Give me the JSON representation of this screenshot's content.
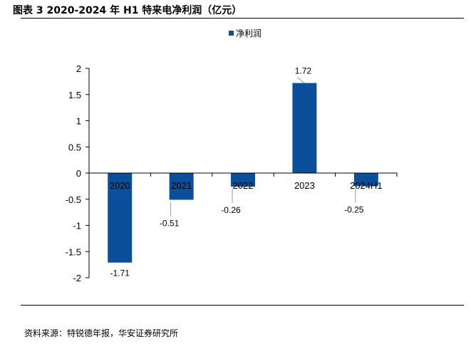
{
  "figure_title": "图表 3 2020-2024 年 H1 特来电净利润（亿元）",
  "source_note": "资料来源：特锐德年报，华安证券研究所",
  "chart_data": {
    "type": "bar",
    "title": "",
    "xlabel": "",
    "ylabel": "",
    "categories": [
      "2020",
      "2021",
      "2022",
      "2023",
      "2024H1"
    ],
    "series": [
      {
        "name": "净利润",
        "values": [
          -1.71,
          -0.51,
          -0.26,
          1.72,
          -0.25
        ],
        "color": "#0b4f9b"
      }
    ],
    "data_labels": [
      "-1.71",
      "-0.51",
      "-0.26",
      "1.72",
      "-0.25"
    ],
    "ylim": [
      -2,
      2
    ],
    "yticks": [
      2,
      1.5,
      1,
      0.5,
      0,
      -0.5,
      -1,
      -1.5,
      -2
    ],
    "ytick_labels": [
      "2",
      "1.5",
      "1",
      "0.5",
      "0",
      "-0.5",
      "-1",
      "-1.5",
      "-2"
    ],
    "grid": false,
    "legend_position": "top-center"
  }
}
